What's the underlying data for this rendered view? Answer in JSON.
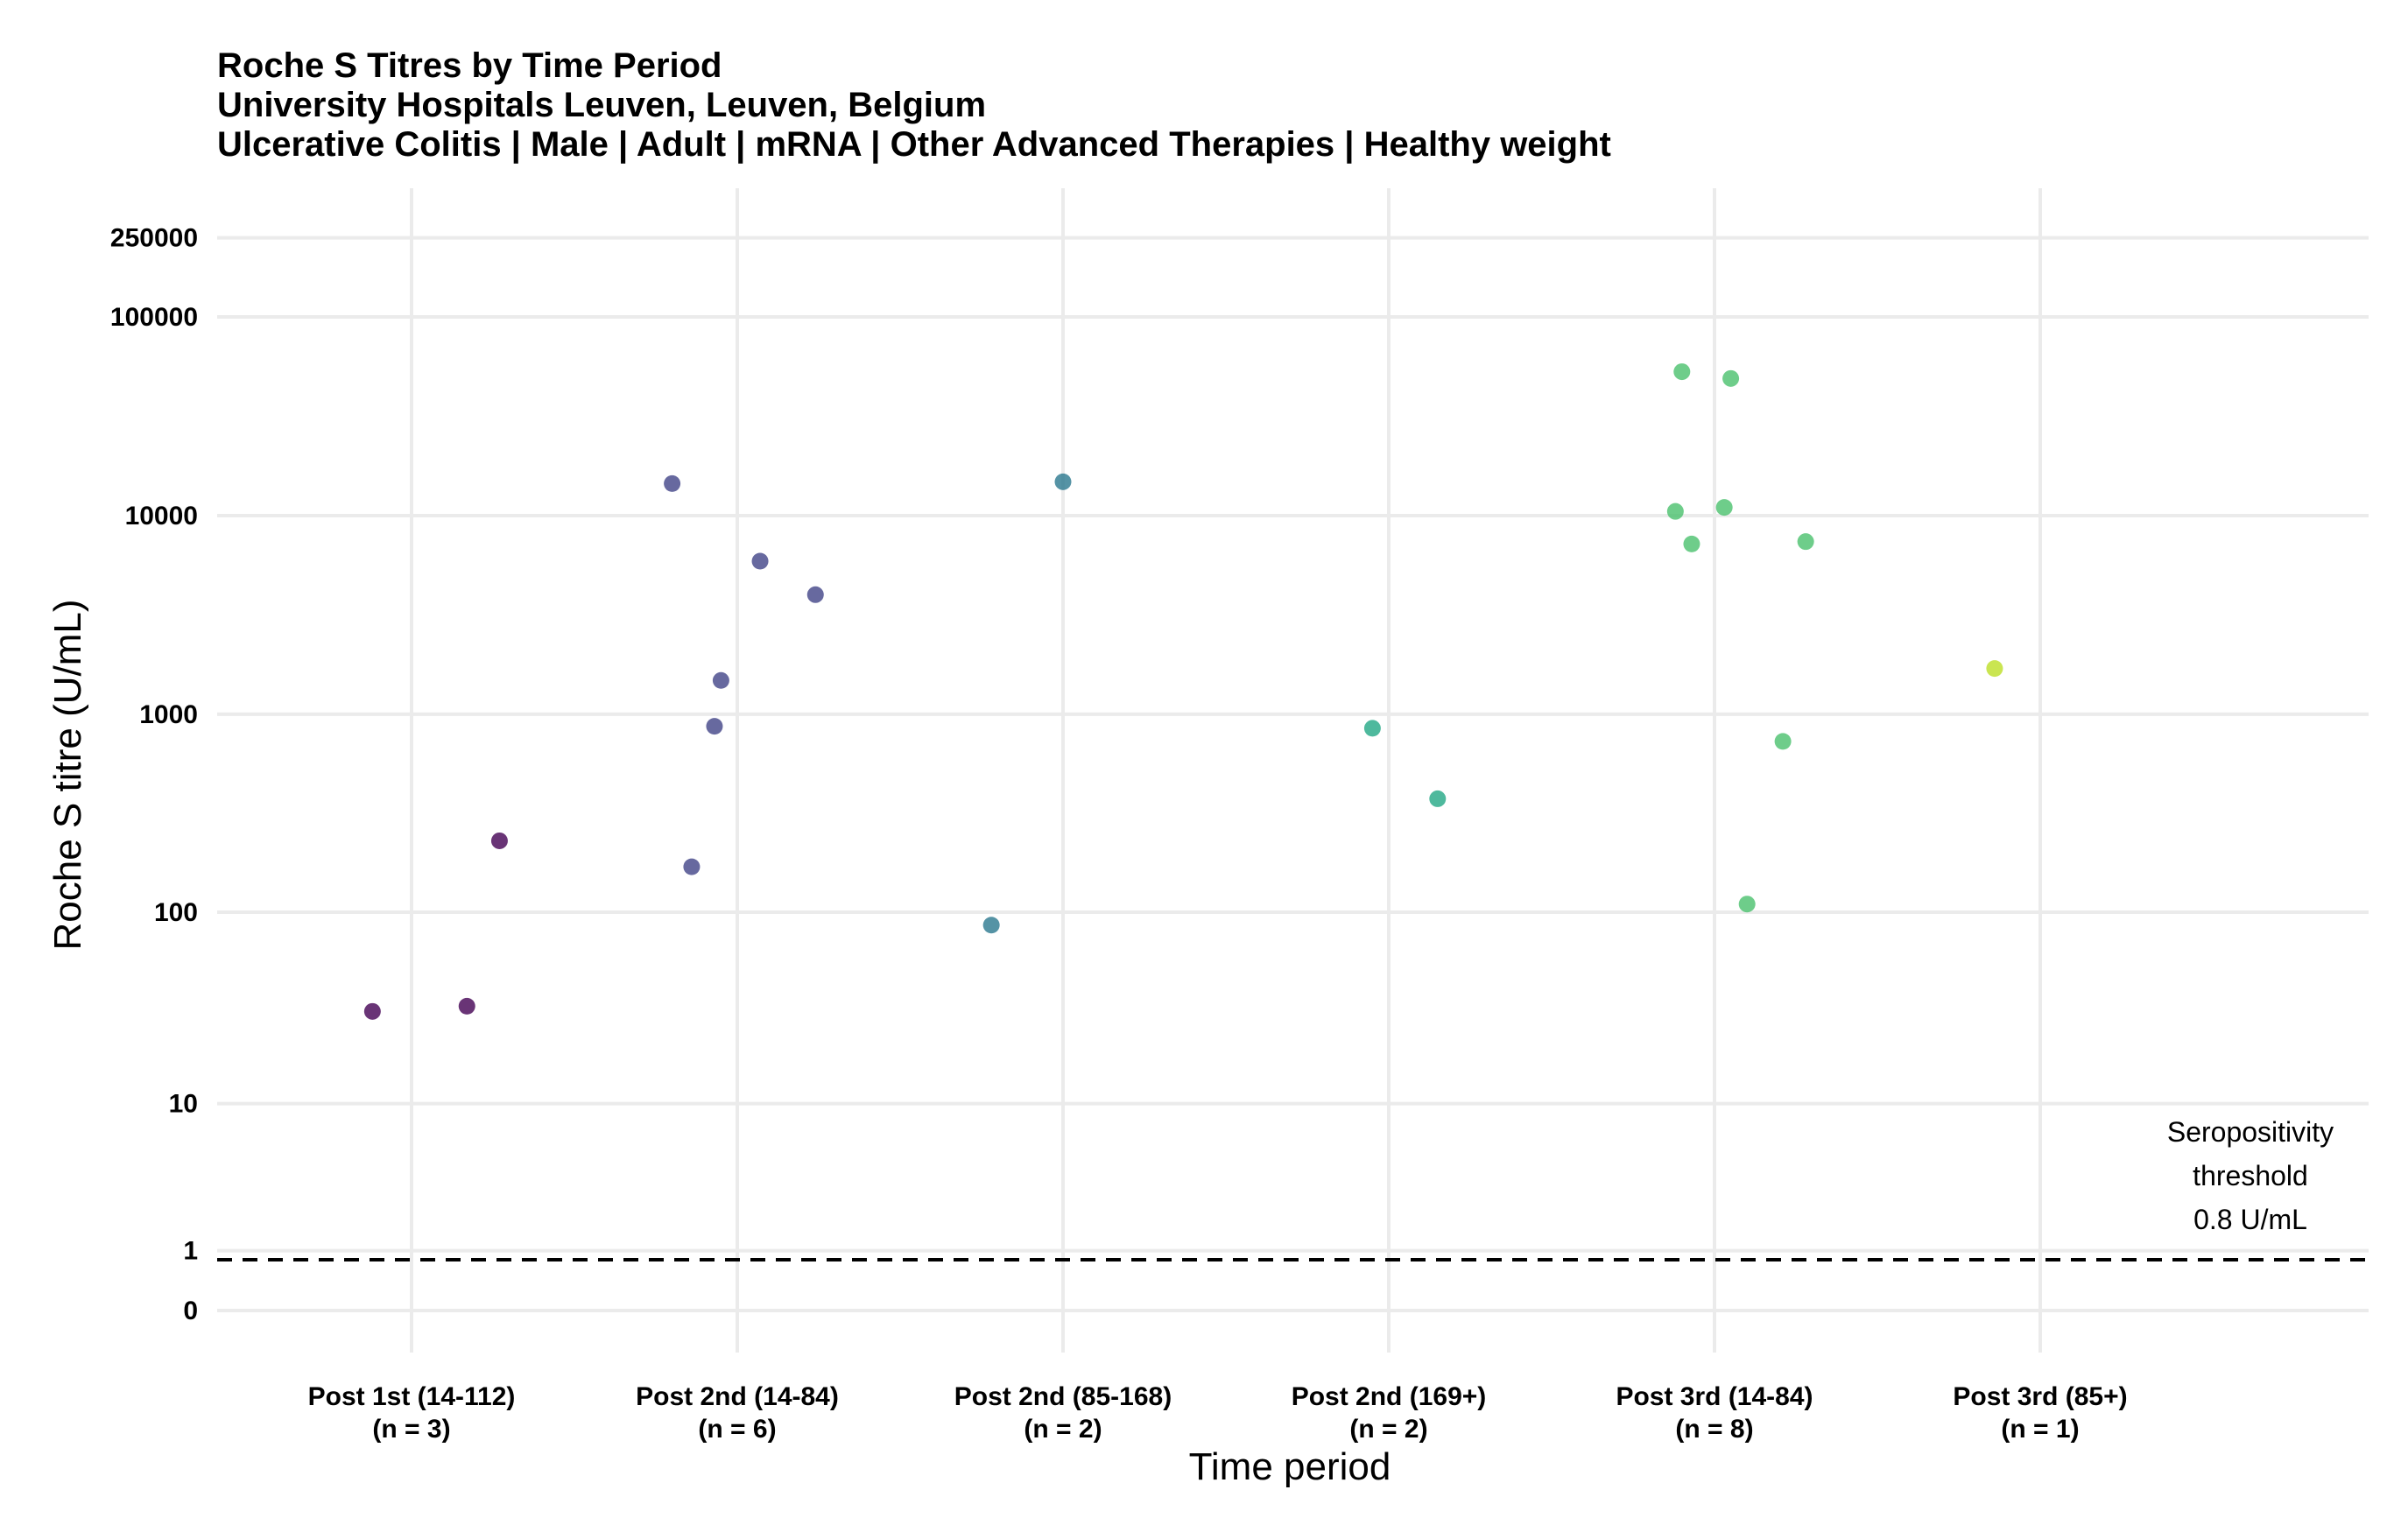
{
  "chart_data": {
    "type": "scatter",
    "title": "Roche S Titres by Time Period",
    "subtitle_lines": [
      "University Hospitals Leuven, Leuven, Belgium",
      "Ulcerative Colitis | Male | Adult | mRNA | Other Advanced Therapies | Healthy weight"
    ],
    "xlabel": "Time period",
    "ylabel": "Roche S titre (U/mL)",
    "y_scale": "log10(1 + y)",
    "y_ticks": [
      0,
      1,
      10,
      100,
      1000,
      10000,
      100000,
      250000
    ],
    "y_tick_labels": [
      "0",
      "1",
      "10",
      "100",
      "1000",
      "10000",
      "100000",
      "250000"
    ],
    "grid": true,
    "categories": [
      {
        "label": "Post 1st (14-112)",
        "n_label": "(n = 3)"
      },
      {
        "label": "Post 2nd (14-84)",
        "n_label": "(n = 6)"
      },
      {
        "label": "Post 2nd (85-168)",
        "n_label": "(n = 2)"
      },
      {
        "label": "Post 2nd (169+)",
        "n_label": "(n = 2)"
      },
      {
        "label": "Post 3rd (14-84)",
        "n_label": "(n = 8)"
      },
      {
        "label": "Post 3rd (85+)",
        "n_label": "(n = 1)"
      }
    ],
    "series": [
      {
        "category": 0,
        "color": "#440154",
        "points": [
          {
            "jitter": -0.12,
            "y": 31
          },
          {
            "jitter": 0.17,
            "y": 33
          },
          {
            "jitter": 0.27,
            "y": 230
          }
        ]
      },
      {
        "category": 1,
        "color": "#414487",
        "points": [
          {
            "jitter": -0.2,
            "y": 14500
          },
          {
            "jitter": -0.14,
            "y": 170
          },
          {
            "jitter": -0.07,
            "y": 870
          },
          {
            "jitter": -0.05,
            "y": 1480
          },
          {
            "jitter": 0.07,
            "y": 5900
          },
          {
            "jitter": 0.24,
            "y": 4000
          }
        ]
      },
      {
        "category": 2,
        "color": "#2a788e",
        "points": [
          {
            "jitter": -0.22,
            "y": 86
          },
          {
            "jitter": 0.0,
            "y": 14800
          }
        ]
      },
      {
        "category": 3,
        "color": "#22a884",
        "points": [
          {
            "jitter": -0.05,
            "y": 850
          },
          {
            "jitter": 0.15,
            "y": 375
          }
        ]
      },
      {
        "category": 4,
        "color": "#4ac16d",
        "points": [
          {
            "jitter": -0.12,
            "y": 10500
          },
          {
            "jitter": -0.1,
            "y": 53000
          },
          {
            "jitter": -0.07,
            "y": 7200
          },
          {
            "jitter": 0.03,
            "y": 11000
          },
          {
            "jitter": 0.05,
            "y": 49000
          },
          {
            "jitter": 0.1,
            "y": 110
          },
          {
            "jitter": 0.21,
            "y": 730
          },
          {
            "jitter": 0.28,
            "y": 7400
          }
        ]
      },
      {
        "category": 5,
        "color": "#bddf26",
        "points": [
          {
            "jitter": -0.14,
            "y": 1700
          }
        ]
      }
    ],
    "threshold": {
      "value": 0.8,
      "label_lines": [
        "Seropositivity",
        "threshold",
        "0.8 U/mL"
      ],
      "style": "dashed"
    }
  }
}
